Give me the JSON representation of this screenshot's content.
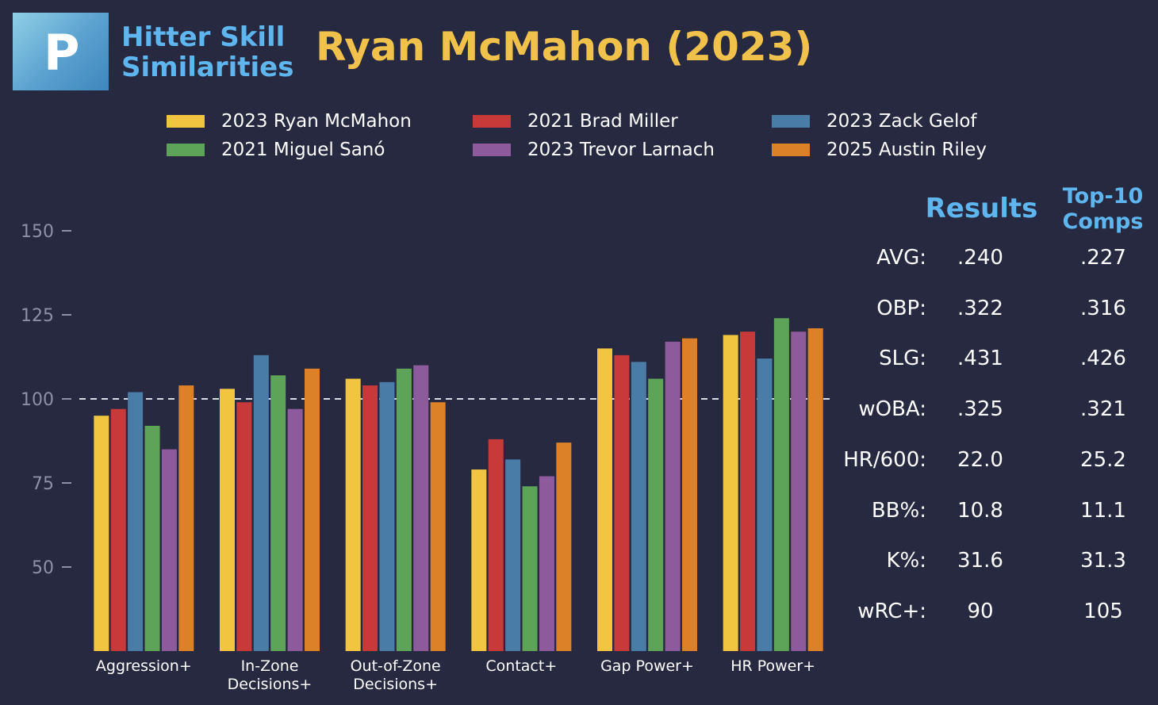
{
  "header": {
    "logo_letter": "P",
    "brand_title_line1": "Hitter Skill",
    "brand_title_line2": "Similarities",
    "title": "Ryan McMahon (2023)"
  },
  "colors": {
    "background": "#262940",
    "title": "#f1c24b",
    "accent": "#5fb6ee",
    "series": [
      "#f1c540",
      "#c8393a",
      "#4a7ca8",
      "#5ea458",
      "#8d5b9c",
      "#dd8128"
    ]
  },
  "chart_data": {
    "type": "bar",
    "title": "Ryan McMahon (2023)",
    "categories": [
      "Aggression+",
      "In-Zone Decisions+",
      "Out-of-Zone Decisions+",
      "Contact+",
      "Gap Power+",
      "HR Power+"
    ],
    "category_lines": [
      [
        "Aggression+"
      ],
      [
        "In-Zone",
        "Decisions+"
      ],
      [
        "Out-of-Zone",
        "Decisions+"
      ],
      [
        "Contact+"
      ],
      [
        "Gap Power+"
      ],
      [
        "HR Power+"
      ]
    ],
    "series": [
      {
        "name": "2023 Ryan McMahon",
        "values": [
          95,
          103,
          106,
          79,
          115,
          119
        ]
      },
      {
        "name": "2021 Brad Miller",
        "values": [
          97,
          99,
          104,
          88,
          113,
          120
        ]
      },
      {
        "name": "2023 Zack Gelof",
        "values": [
          102,
          113,
          105,
          82,
          111,
          112
        ]
      },
      {
        "name": "2021 Miguel Sanó",
        "values": [
          92,
          107,
          109,
          74,
          106,
          124
        ]
      },
      {
        "name": "2023 Trevor Larnach",
        "values": [
          85,
          97,
          110,
          77,
          117,
          120
        ]
      },
      {
        "name": "2025 Austin Riley",
        "values": [
          104,
          109,
          99,
          87,
          118,
          121
        ]
      }
    ],
    "yticks": [
      50,
      75,
      100,
      125,
      150
    ],
    "ylim": [
      25,
      150
    ],
    "reference_line": 100,
    "xlabel": "",
    "ylabel": ""
  },
  "results": {
    "title": "Results",
    "comps_title_line1": "Top-10",
    "comps_title_line2": "Comps",
    "rows": [
      {
        "label": "AVG:",
        "value": ".240",
        "comp": ".227"
      },
      {
        "label": "OBP:",
        "value": ".322",
        "comp": ".316"
      },
      {
        "label": "SLG:",
        "value": ".431",
        "comp": ".426"
      },
      {
        "label": "wOBA:",
        "value": ".325",
        "comp": ".321"
      },
      {
        "label": "HR/600:",
        "value": "22.0",
        "comp": "25.2"
      },
      {
        "label": "BB%:",
        "value": "10.8",
        "comp": "11.1"
      },
      {
        "label": "K%:",
        "value": "31.6",
        "comp": "31.3"
      },
      {
        "label": "wRC+:",
        "value": "90",
        "comp": "105"
      }
    ]
  }
}
